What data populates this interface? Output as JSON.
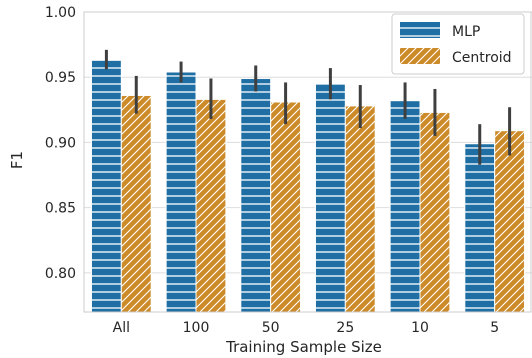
{
  "chart_data": {
    "type": "bar",
    "title": "",
    "xlabel": "Training Sample Size",
    "ylabel": "F1",
    "categories": [
      "All",
      "100",
      "50",
      "25",
      "10",
      "5"
    ],
    "ylim": [
      0.77,
      1.0
    ],
    "yticks": [
      "0.80",
      "0.85",
      "0.90",
      "0.95",
      "1.00"
    ],
    "ytick_values": [
      0.8,
      0.85,
      0.9,
      0.95,
      1.0
    ],
    "grid": true,
    "legend": {
      "position": "top-right"
    },
    "series": [
      {
        "name": "MLP",
        "color": "#1f6fa5",
        "hatch": "horizontal",
        "values": [
          0.963,
          0.954,
          0.949,
          0.945,
          0.932,
          0.899
        ],
        "error_low": [
          0.956,
          0.946,
          0.939,
          0.933,
          0.918,
          0.883
        ],
        "error_high": [
          0.971,
          0.962,
          0.959,
          0.957,
          0.946,
          0.914
        ]
      },
      {
        "name": "Centroid",
        "color": "#cc8a28",
        "hatch": "diagonal",
        "values": [
          0.936,
          0.933,
          0.931,
          0.928,
          0.923,
          0.909
        ],
        "error_low": [
          0.922,
          0.918,
          0.914,
          0.911,
          0.905,
          0.89
        ],
        "error_high": [
          0.951,
          0.949,
          0.946,
          0.944,
          0.941,
          0.927
        ]
      }
    ]
  }
}
